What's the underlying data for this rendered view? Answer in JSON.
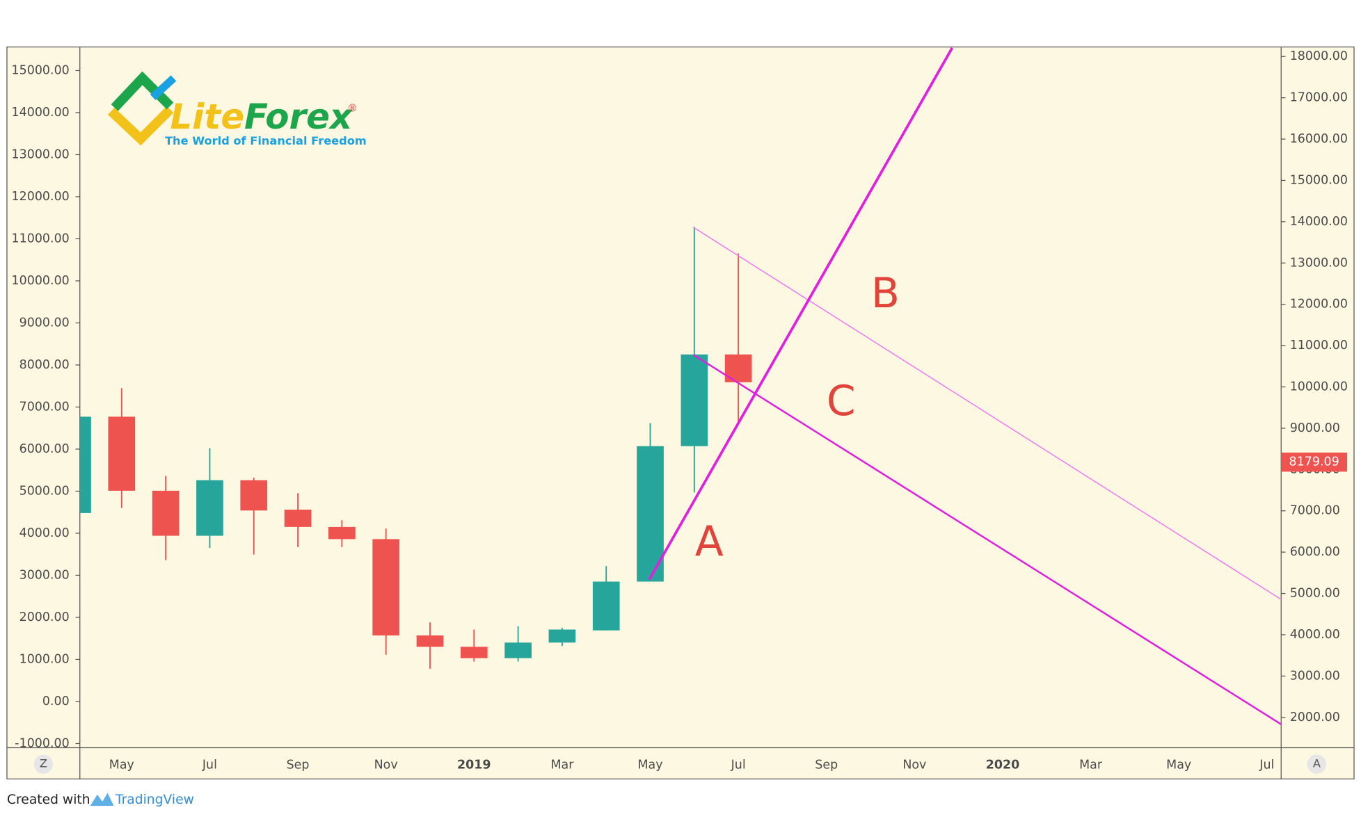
{
  "chart_data": {
    "type": "candlestick",
    "categories": [
      null,
      "May",
      null,
      "Jul",
      null,
      "Sep",
      null,
      "Nov",
      null,
      "2019",
      null,
      "Mar",
      null,
      "May",
      null,
      "Jul",
      null,
      "Sep",
      null,
      "Nov",
      null,
      "2020",
      null,
      "Mar",
      null,
      "May",
      null,
      "Jul"
    ],
    "open": [
      4480,
      6770,
      5010,
      3940,
      5260,
      4560,
      4150,
      3860,
      1570,
      1300,
      1030,
      1400,
      1690,
      2850,
      6070,
      8250,
      null,
      null,
      null,
      null,
      null,
      null,
      null,
      null,
      null,
      null,
      null,
      null
    ],
    "high": [
      6770,
      7450,
      5360,
      6020,
      5320,
      4950,
      4310,
      4110,
      1880,
      1710,
      1790,
      1750,
      3220,
      6620,
      11290,
      10650,
      null,
      null,
      null,
      null,
      null,
      null,
      null,
      null,
      null,
      null,
      null,
      null
    ],
    "low": [
      4480,
      4600,
      3360,
      3650,
      3490,
      3670,
      3670,
      1110,
      780,
      950,
      950,
      1320,
      1690,
      2850,
      4970,
      6580,
      null,
      null,
      null,
      null,
      null,
      null,
      null,
      null,
      null,
      null,
      null,
      null
    ],
    "close": [
      6770,
      5010,
      3940,
      5260,
      4540,
      4150,
      3860,
      1570,
      1300,
      1030,
      1400,
      1710,
      2850,
      6070,
      8250,
      7590,
      null,
      null,
      null,
      null,
      null,
      null,
      null,
      null,
      null,
      null,
      null,
      null
    ],
    "up_color": "#26a69a",
    "down_color": "#ef5350",
    "ylim": [
      -1100,
      15560
    ],
    "yticks": [
      {
        "value": -1000,
        "label": "-1000.00"
      },
      {
        "value": 0,
        "label": "0.00"
      },
      {
        "value": 1000,
        "label": "1000.00"
      },
      {
        "value": 2000,
        "label": "2000.00"
      },
      {
        "value": 3000,
        "label": "3000.00"
      },
      {
        "value": 4000,
        "label": "4000.00"
      },
      {
        "value": 5000,
        "label": "5000.00"
      },
      {
        "value": 6000,
        "label": "6000.00"
      },
      {
        "value": 7000,
        "label": "7000.00"
      },
      {
        "value": 8000,
        "label": "8000.00"
      },
      {
        "value": 9000,
        "label": "9000.00"
      },
      {
        "value": 10000,
        "label": "10000.00"
      },
      {
        "value": 11000,
        "label": "11000.00"
      },
      {
        "value": 12000,
        "label": "12000.00"
      },
      {
        "value": 13000,
        "label": "13000.00"
      },
      {
        "value": 14000,
        "label": "14000.00"
      },
      {
        "value": 15000,
        "label": "15000.00"
      }
    ],
    "y2lim": [
      1264,
      18230
    ],
    "y2ticks": [
      {
        "value": 2000,
        "label": "2000.00"
      },
      {
        "value": 3000,
        "label": "3000.00"
      },
      {
        "value": 4000,
        "label": "4000.00"
      },
      {
        "value": 5000,
        "label": "5000.00"
      },
      {
        "value": 6000,
        "label": "6000.00"
      },
      {
        "value": 7000,
        "label": "7000.00"
      },
      {
        "value": 8000,
        "label": "8000.00"
      },
      {
        "value": 9000,
        "label": "9000.00"
      },
      {
        "value": 10000,
        "label": "10000.00"
      },
      {
        "value": 11000,
        "label": "11000.00"
      },
      {
        "value": 12000,
        "label": "12000.00"
      },
      {
        "value": 13000,
        "label": "13000.00"
      },
      {
        "value": 14000,
        "label": "14000.00"
      },
      {
        "value": 15000,
        "label": "15000.00"
      },
      {
        "value": 16000,
        "label": "16000.00"
      },
      {
        "value": 17000,
        "label": "17000.00"
      },
      {
        "value": 18000,
        "label": "18000.00"
      }
    ],
    "last_price": {
      "value": 8179.09,
      "label": "8179.09"
    },
    "annotations": [
      "A",
      "B",
      "C"
    ]
  },
  "logo": {
    "name_part1": "Lite",
    "name_part2": "Forex",
    "registered": "®",
    "tagline": "The World of Financial Freedom"
  },
  "buttons": {
    "left": "Z",
    "right": "A"
  },
  "footer": {
    "created_with": "Created with",
    "brand": "TradingView"
  }
}
